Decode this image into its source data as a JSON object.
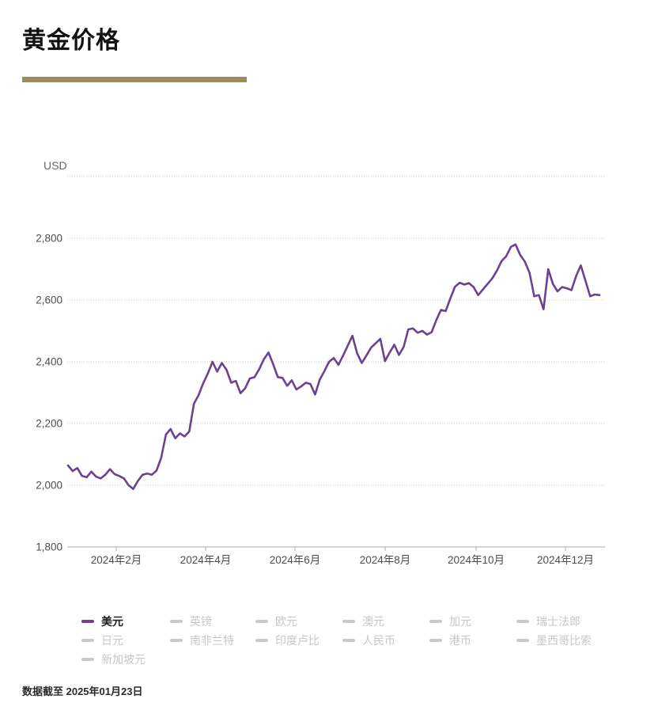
{
  "header": {
    "title": "黄金价格"
  },
  "chart_data": {
    "type": "line",
    "title": "黄金价格",
    "ylabel": "USD",
    "ylim": [
      1800,
      3000
    ],
    "grid": "dotted-horizontal",
    "legend_position": "bottom",
    "y_ticks": [
      {
        "v": 3000,
        "label": ""
      },
      {
        "v": 2800,
        "label": "2,800"
      },
      {
        "v": 2600,
        "label": "2,600"
      },
      {
        "v": 2400,
        "label": "2,400"
      },
      {
        "v": 2200,
        "label": "2,200"
      },
      {
        "v": 2000,
        "label": "2,000"
      },
      {
        "v": 1800,
        "label": "1,800"
      }
    ],
    "x_ticks": [
      "2024年2月",
      "2024年4月",
      "2024年6月",
      "2024年8月",
      "2024年10月",
      "2024年12月"
    ],
    "series": [
      {
        "name": "美元",
        "color": "#6B4191",
        "values": [
          2064,
          2046,
          2056,
          2030,
          2026,
          2044,
          2028,
          2022,
          2034,
          2052,
          2036,
          2030,
          2022,
          2000,
          1988,
          2014,
          2034,
          2038,
          2034,
          2048,
          2090,
          2164,
          2182,
          2152,
          2168,
          2158,
          2174,
          2264,
          2292,
          2330,
          2362,
          2400,
          2368,
          2396,
          2374,
          2332,
          2338,
          2298,
          2314,
          2346,
          2350,
          2376,
          2408,
          2430,
          2392,
          2350,
          2348,
          2322,
          2340,
          2310,
          2320,
          2332,
          2328,
          2294,
          2342,
          2370,
          2400,
          2412,
          2390,
          2420,
          2452,
          2484,
          2428,
          2396,
          2420,
          2446,
          2460,
          2474,
          2402,
          2430,
          2455,
          2422,
          2448,
          2505,
          2508,
          2494,
          2500,
          2488,
          2496,
          2535,
          2568,
          2564,
          2605,
          2643,
          2656,
          2650,
          2655,
          2642,
          2616,
          2634,
          2652,
          2670,
          2695,
          2726,
          2742,
          2772,
          2780,
          2746,
          2724,
          2688,
          2612,
          2616,
          2570,
          2700,
          2652,
          2628,
          2642,
          2638,
          2632,
          2678,
          2712,
          2662,
          2612,
          2618,
          2616
        ]
      }
    ]
  },
  "colors": {
    "accent_bar": "#9C8D5C",
    "line": "#6B4191",
    "grid": "#cccccc",
    "axis": "#ababab",
    "tick_text": "#4d4d4d",
    "inactive": "#c6c6c6"
  },
  "legend": {
    "items": [
      {
        "label": "美元",
        "active": true
      },
      {
        "label": "英镑",
        "active": false
      },
      {
        "label": "欧元",
        "active": false
      },
      {
        "label": "澳元",
        "active": false
      },
      {
        "label": "加元",
        "active": false
      },
      {
        "label": "瑞士法郎",
        "active": false
      },
      {
        "label": "日元",
        "active": false
      },
      {
        "label": "南非兰特",
        "active": false
      },
      {
        "label": "印度卢比",
        "active": false
      },
      {
        "label": "人民币",
        "active": false
      },
      {
        "label": "港币",
        "active": false
      },
      {
        "label": "墨西哥比索",
        "active": false
      },
      {
        "label": "新加坡元",
        "active": false
      }
    ]
  },
  "footer": {
    "text": "数据截至 2025年01月23日"
  }
}
